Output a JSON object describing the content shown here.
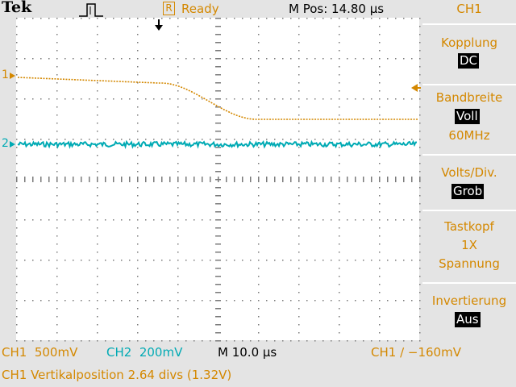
{
  "header": {
    "brand": "Tek",
    "trigger_icon": "trigger-pulse-icon",
    "run_badge": "R",
    "run_status": "Ready",
    "mpos_label": "M Pos: 14.80 µs"
  },
  "markers": {
    "ch1": "1",
    "ch2": "2"
  },
  "side_menu": {
    "title": "CH1",
    "coupling_label": "Kopplung",
    "coupling_value": "DC",
    "bandwidth_label": "Bandbreite",
    "bandwidth_value": "Voll",
    "bandwidth_sub": "60MHz",
    "voltsdiv_label": "Volts/Div.",
    "voltsdiv_value": "Grob",
    "probe_label": "Tastkopf",
    "probe_value1": "1X",
    "probe_value2": "Spannung",
    "invert_label": "Invertierung",
    "invert_value": "Aus"
  },
  "status_bar": {
    "ch1_scale": "CH1  500mV",
    "ch2_scale": "CH2  200mV",
    "time_scale": "M 10.0 µs",
    "trigger_readout": "CH1 ∕ −160mV",
    "message": "CH1 Vertikalposition 2.64 divs (1.32V)"
  },
  "colors": {
    "ch1": "#d48800",
    "ch2": "#00aab4",
    "background": "#e4e4e4",
    "grid": "#7a7a7a"
  }
}
